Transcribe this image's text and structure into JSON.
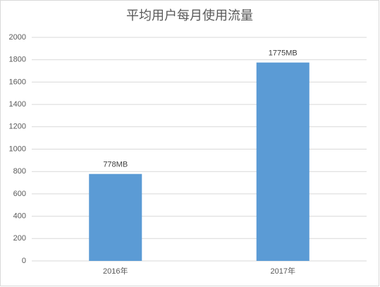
{
  "chart_data": {
    "type": "bar",
    "title": "平均用户每月使用流量",
    "categories": [
      "2016年",
      "2017年"
    ],
    "values": [
      778,
      1775
    ],
    "value_labels": [
      "778MB",
      "1775MB"
    ],
    "color": "#5b9bd5",
    "ylim": [
      0,
      2000
    ],
    "yticks": [
      0,
      200,
      400,
      600,
      800,
      1000,
      1200,
      1400,
      1600,
      1800,
      2000
    ],
    "grid": true
  }
}
